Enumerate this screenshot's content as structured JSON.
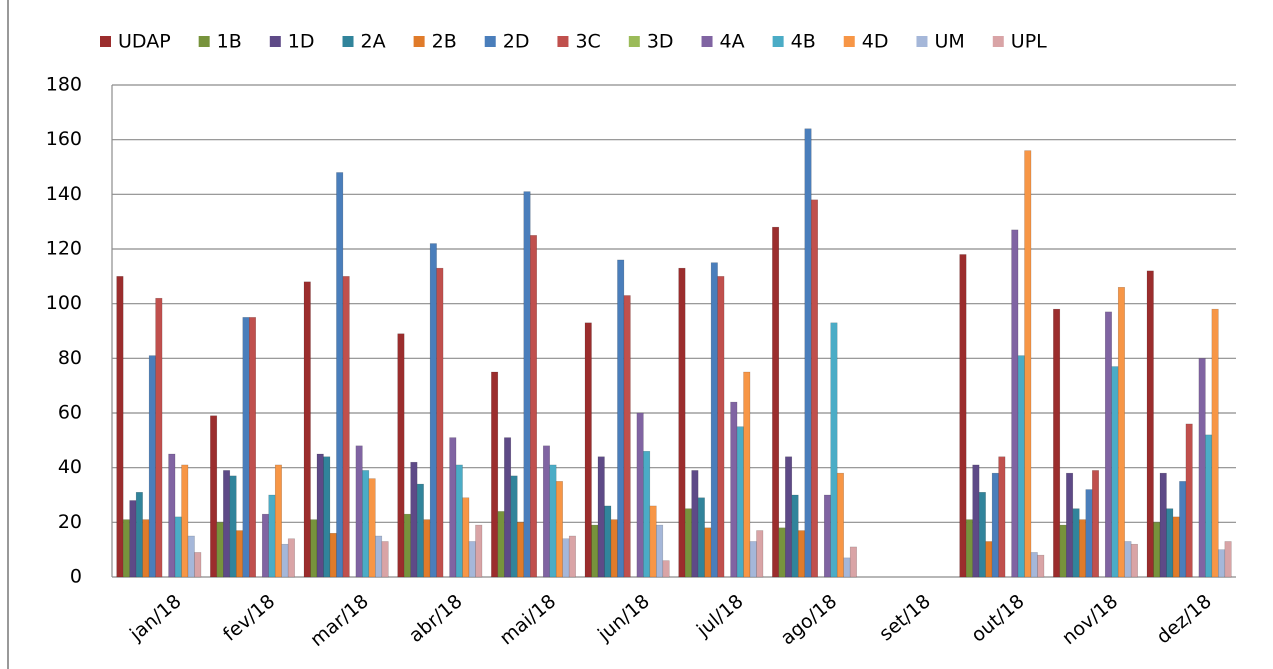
{
  "chart_data": {
    "type": "bar",
    "categories": [
      "jan/18",
      "fev/18",
      "mar/18",
      "abr/18",
      "mai/18",
      "jun/18",
      "jul/18",
      "ago/18",
      "set/18",
      "out/18",
      "nov/18",
      "dez/18"
    ],
    "series": [
      {
        "name": "UDAP",
        "color": "#9b2d2d",
        "values": [
          110,
          59,
          108,
          89,
          75,
          93,
          113,
          128,
          0,
          118,
          98,
          112
        ]
      },
      {
        "name": "1B",
        "color": "#77933c",
        "values": [
          21,
          20,
          21,
          23,
          24,
          19,
          25,
          18,
          0,
          21,
          19,
          20
        ]
      },
      {
        "name": "1D",
        "color": "#5e4a87",
        "values": [
          28,
          39,
          45,
          42,
          51,
          44,
          39,
          44,
          0,
          41,
          38,
          38
        ]
      },
      {
        "name": "2A",
        "color": "#31849b",
        "values": [
          31,
          37,
          44,
          34,
          37,
          26,
          29,
          30,
          0,
          31,
          25,
          25
        ]
      },
      {
        "name": "2B",
        "color": "#e07b2a",
        "values": [
          21,
          17,
          16,
          21,
          20,
          21,
          18,
          17,
          0,
          13,
          21,
          22
        ]
      },
      {
        "name": "2D",
        "color": "#4a7ebb",
        "values": [
          81,
          95,
          148,
          122,
          141,
          116,
          115,
          164,
          0,
          38,
          32,
          35
        ]
      },
      {
        "name": "3C",
        "color": "#c0504d",
        "values": [
          102,
          95,
          110,
          113,
          125,
          103,
          110,
          138,
          0,
          44,
          39,
          56
        ]
      },
      {
        "name": "3D",
        "color": "#9bbb59",
        "values": [
          0,
          0,
          0,
          0,
          0,
          0,
          0,
          0,
          0,
          0,
          0,
          0
        ]
      },
      {
        "name": "4A",
        "color": "#8064a2",
        "values": [
          45,
          23,
          48,
          51,
          48,
          60,
          64,
          30,
          0,
          127,
          97,
          80
        ]
      },
      {
        "name": "4B",
        "color": "#4bacc6",
        "values": [
          22,
          30,
          39,
          41,
          41,
          46,
          55,
          93,
          0,
          81,
          77,
          52
        ]
      },
      {
        "name": "4D",
        "color": "#f79646",
        "values": [
          41,
          41,
          36,
          29,
          35,
          26,
          75,
          38,
          0,
          156,
          106,
          98
        ]
      },
      {
        "name": "UM",
        "color": "#a5b7d9",
        "values": [
          15,
          12,
          15,
          13,
          14,
          19,
          13,
          7,
          0,
          9,
          13,
          10
        ]
      },
      {
        "name": "UPL",
        "color": "#d9a4a6",
        "values": [
          9,
          14,
          13,
          19,
          15,
          6,
          17,
          11,
          0,
          8,
          12,
          13
        ]
      }
    ],
    "ylim": [
      0,
      180
    ],
    "yticks": [
      0,
      20,
      40,
      60,
      80,
      100,
      120,
      140,
      160,
      180
    ],
    "grid": true,
    "legend": "top"
  }
}
